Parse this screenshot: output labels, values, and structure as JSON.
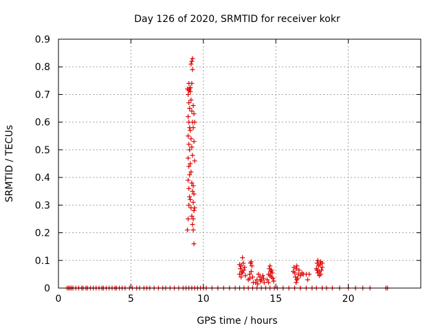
{
  "chart_data": {
    "type": "scatter",
    "title": "Day 126 of 2020, SRMTID for receiver kokr",
    "xlabel": "GPS time / hours",
    "ylabel": "SRMTID / TECUs",
    "xlim": [
      0,
      25
    ],
    "ylim": [
      0,
      0.9
    ],
    "xticks": [
      0,
      5,
      10,
      15,
      20
    ],
    "yticks": [
      0,
      0.1,
      0.2,
      0.3,
      0.4,
      0.5,
      0.6,
      0.7,
      0.8,
      0.9
    ],
    "xtick_labels": [
      "0",
      "5",
      "10",
      "15",
      "20"
    ],
    "ytick_labels": [
      "0",
      "0.1",
      "0.2",
      "0.3",
      "0.4",
      "0.5",
      "0.6",
      "0.7",
      "0.8",
      "0.9"
    ],
    "grid": true,
    "legend": "none",
    "marker": "+",
    "color": "#dd0000",
    "series": [
      {
        "points": [
          [
            0.6,
            0
          ],
          [
            0.7,
            0
          ],
          [
            0.8,
            0
          ],
          [
            0.9,
            0
          ],
          [
            1.0,
            0
          ],
          [
            1.2,
            0
          ],
          [
            1.4,
            0
          ],
          [
            1.6,
            0
          ],
          [
            1.7,
            0
          ],
          [
            1.9,
            0
          ],
          [
            2.0,
            0
          ],
          [
            2.2,
            0
          ],
          [
            2.4,
            0
          ],
          [
            2.6,
            0
          ],
          [
            2.8,
            0
          ],
          [
            3.0,
            0
          ],
          [
            3.1,
            0
          ],
          [
            3.3,
            0
          ],
          [
            3.5,
            0
          ],
          [
            3.7,
            0
          ],
          [
            3.9,
            0
          ],
          [
            4.0,
            0
          ],
          [
            4.2,
            0
          ],
          [
            4.4,
            0
          ],
          [
            4.6,
            0
          ],
          [
            4.9,
            0
          ],
          [
            5.1,
            0
          ],
          [
            5.4,
            0
          ],
          [
            5.6,
            0
          ],
          [
            5.9,
            0
          ],
          [
            6.1,
            0
          ],
          [
            6.3,
            0
          ],
          [
            6.6,
            0
          ],
          [
            6.9,
            0
          ],
          [
            7.2,
            0
          ],
          [
            7.4,
            0
          ],
          [
            7.7,
            0
          ],
          [
            8.0,
            0
          ],
          [
            8.3,
            0
          ],
          [
            8.6,
            0
          ],
          [
            8.8,
            0
          ],
          [
            9.0,
            0
          ],
          [
            9.2,
            0
          ],
          [
            9.4,
            0
          ],
          [
            9.6,
            0
          ],
          [
            9.8,
            0
          ],
          [
            10.0,
            0
          ],
          [
            10.2,
            0
          ],
          [
            10.6,
            0
          ],
          [
            11.0,
            0
          ],
          [
            11.4,
            0
          ],
          [
            11.8,
            0
          ],
          [
            12.2,
            0
          ],
          [
            12.5,
            0
          ],
          [
            12.8,
            0
          ],
          [
            13.1,
            0
          ],
          [
            13.4,
            0
          ],
          [
            13.7,
            0
          ],
          [
            14.0,
            0
          ],
          [
            14.3,
            0
          ],
          [
            14.6,
            0
          ],
          [
            14.9,
            0
          ],
          [
            15.1,
            0
          ],
          [
            15.5,
            0
          ],
          [
            15.9,
            0
          ],
          [
            16.3,
            0
          ],
          [
            16.7,
            0
          ],
          [
            17.1,
            0
          ],
          [
            17.5,
            0
          ],
          [
            17.8,
            0
          ],
          [
            18.2,
            0
          ],
          [
            18.5,
            0
          ],
          [
            18.9,
            0
          ],
          [
            19.4,
            0
          ],
          [
            20.0,
            0
          ],
          [
            20.5,
            0
          ],
          [
            21.0,
            0
          ],
          [
            21.5,
            0
          ],
          [
            22.6,
            0
          ],
          [
            22.7,
            0
          ],
          [
            8.9,
            0.21
          ],
          [
            8.95,
            0.25
          ],
          [
            9.0,
            0.3
          ],
          [
            9.05,
            0.33
          ],
          [
            9.0,
            0.36
          ],
          [
            8.95,
            0.39
          ],
          [
            9.05,
            0.41
          ],
          [
            9.0,
            0.44
          ],
          [
            8.95,
            0.47
          ],
          [
            9.05,
            0.5
          ],
          [
            9.0,
            0.52
          ],
          [
            8.95,
            0.55
          ],
          [
            9.05,
            0.58
          ],
          [
            9.0,
            0.6
          ],
          [
            8.95,
            0.62
          ],
          [
            9.05,
            0.65
          ],
          [
            9.0,
            0.67
          ],
          [
            8.95,
            0.7
          ],
          [
            9.05,
            0.72
          ],
          [
            9.0,
            0.74
          ],
          [
            9.1,
            0.71
          ],
          [
            9.15,
            0.68
          ],
          [
            9.2,
            0.64
          ],
          [
            9.25,
            0.6
          ],
          [
            9.1,
            0.57
          ],
          [
            9.15,
            0.54
          ],
          [
            9.2,
            0.51
          ],
          [
            9.25,
            0.48
          ],
          [
            9.1,
            0.45
          ],
          [
            9.15,
            0.42
          ],
          [
            9.2,
            0.38
          ],
          [
            9.25,
            0.35
          ],
          [
            9.1,
            0.32
          ],
          [
            9.15,
            0.29
          ],
          [
            9.2,
            0.26
          ],
          [
            9.25,
            0.23
          ],
          [
            9.3,
            0.21
          ],
          [
            9.35,
            0.16
          ],
          [
            9.3,
            0.25
          ],
          [
            9.35,
            0.28
          ],
          [
            9.3,
            0.31
          ],
          [
            9.4,
            0.29
          ],
          [
            9.35,
            0.34
          ],
          [
            9.3,
            0.37
          ],
          [
            9.4,
            0.46
          ],
          [
            9.35,
            0.53
          ],
          [
            9.3,
            0.58
          ],
          [
            9.4,
            0.6
          ],
          [
            9.35,
            0.63
          ],
          [
            9.3,
            0.66
          ],
          [
            9.2,
            0.74
          ],
          [
            9.25,
            0.79
          ],
          [
            9.2,
            0.82
          ],
          [
            9.25,
            0.83
          ],
          [
            9.15,
            0.81
          ],
          [
            8.9,
            0.72
          ],
          [
            9.0,
            0.715
          ],
          [
            9.1,
            0.725
          ],
          [
            12.5,
            0.05
          ],
          [
            12.55,
            0.07
          ],
          [
            12.6,
            0.08
          ],
          [
            12.65,
            0.06
          ],
          [
            12.7,
            0.11
          ],
          [
            12.75,
            0.09
          ],
          [
            12.6,
            0.04
          ],
          [
            12.7,
            0.055
          ],
          [
            12.8,
            0.065
          ],
          [
            12.85,
            0.075
          ],
          [
            12.5,
            0.085
          ],
          [
            12.9,
            0.045
          ],
          [
            13.1,
            0.03
          ],
          [
            13.2,
            0.05
          ],
          [
            13.25,
            0.09
          ],
          [
            13.3,
            0.095
          ],
          [
            13.35,
            0.08
          ],
          [
            13.4,
            0.04
          ],
          [
            13.45,
            0.02
          ],
          [
            13.2,
            0.035
          ],
          [
            13.3,
            0.06
          ],
          [
            13.6,
            0.02
          ],
          [
            13.7,
            0.03
          ],
          [
            13.8,
            0.05
          ],
          [
            13.9,
            0.04
          ],
          [
            14.0,
            0.03
          ],
          [
            14.1,
            0.045
          ],
          [
            13.75,
            0.015
          ],
          [
            13.95,
            0.025
          ],
          [
            14.15,
            0.035
          ],
          [
            14.2,
            0.02
          ],
          [
            14.4,
            0.03
          ],
          [
            14.5,
            0.05
          ],
          [
            14.55,
            0.07
          ],
          [
            14.6,
            0.08
          ],
          [
            14.65,
            0.06
          ],
          [
            14.7,
            0.04
          ],
          [
            14.75,
            0.055
          ],
          [
            14.8,
            0.035
          ],
          [
            14.85,
            0.025
          ],
          [
            14.5,
            0.02
          ],
          [
            14.6,
            0.045
          ],
          [
            14.7,
            0.065
          ],
          [
            16.2,
            0.06
          ],
          [
            16.25,
            0.075
          ],
          [
            16.3,
            0.055
          ],
          [
            16.35,
            0.04
          ],
          [
            16.4,
            0.07
          ],
          [
            16.45,
            0.08
          ],
          [
            16.5,
            0.035
          ],
          [
            16.55,
            0.05
          ],
          [
            16.6,
            0.065
          ],
          [
            16.4,
            0.02
          ],
          [
            16.45,
            0.03
          ],
          [
            16.7,
            0.045
          ],
          [
            16.8,
            0.055
          ],
          [
            16.9,
            0.05
          ],
          [
            17.1,
            0.05
          ],
          [
            17.2,
            0.03
          ],
          [
            17.3,
            0.05
          ],
          [
            17.8,
            0.07
          ],
          [
            17.85,
            0.09
          ],
          [
            17.9,
            0.1
          ],
          [
            17.95,
            0.08
          ],
          [
            18.0,
            0.06
          ],
          [
            18.05,
            0.085
          ],
          [
            18.1,
            0.095
          ],
          [
            18.15,
            0.065
          ],
          [
            18.2,
            0.075
          ],
          [
            17.9,
            0.055
          ],
          [
            18.0,
            0.045
          ],
          [
            18.1,
            0.05
          ],
          [
            17.85,
            0.065
          ],
          [
            18.2,
            0.09
          ]
        ]
      }
    ]
  }
}
